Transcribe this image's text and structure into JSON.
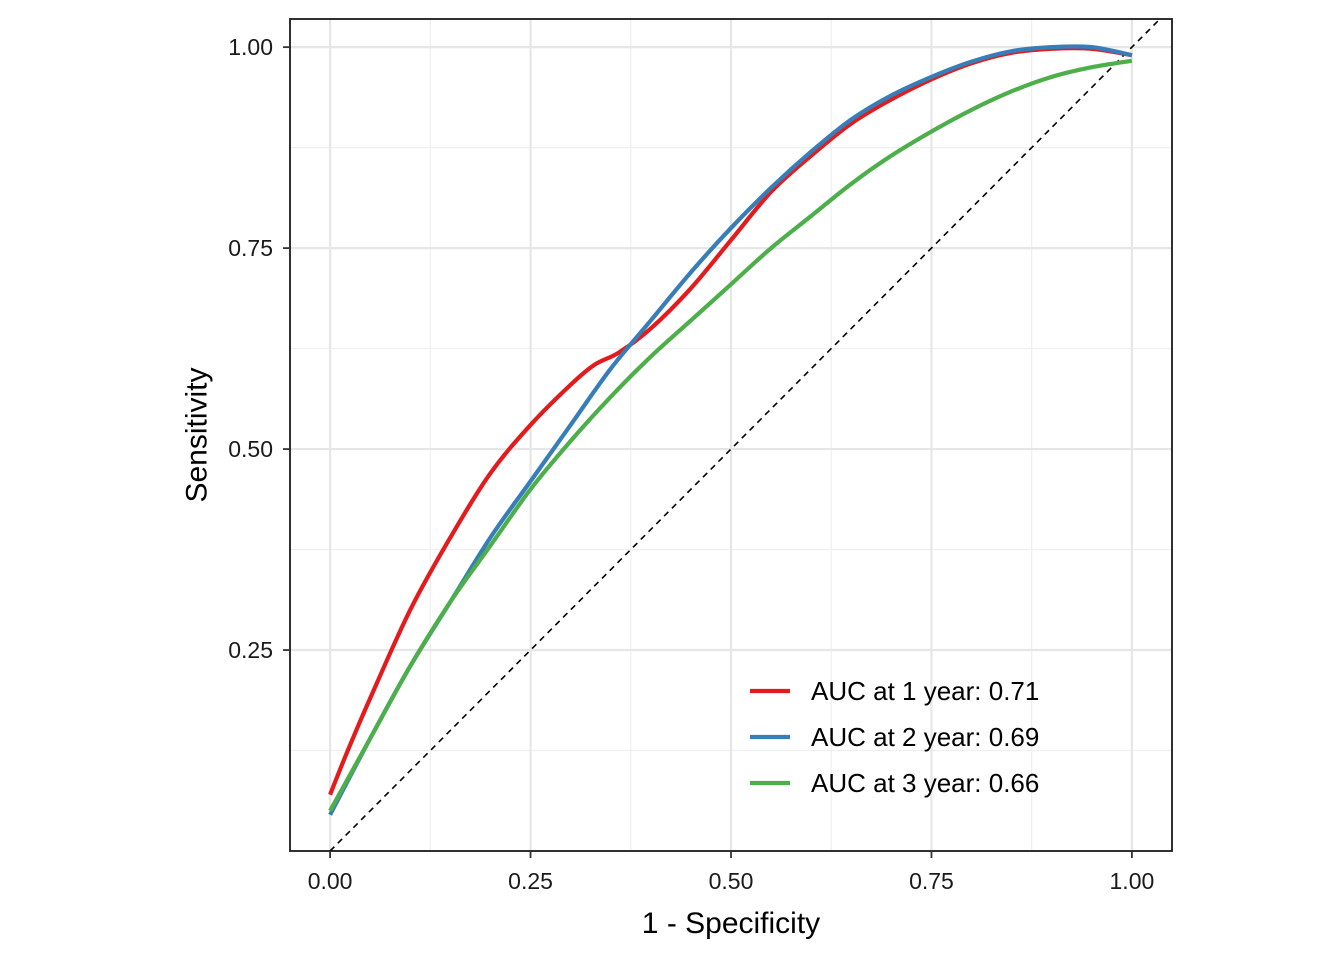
{
  "chart_data": {
    "type": "line",
    "title": "",
    "xlabel": "1 - Specificity",
    "ylabel": "Sensitivity",
    "xlim": [
      -0.05,
      1.05
    ],
    "ylim": [
      -0.0,
      1.035
    ],
    "x_ticks": [
      0,
      0.25,
      0.5,
      0.75,
      1
    ],
    "x_tick_labels": [
      "0.00",
      "0.25",
      "0.50",
      "0.75",
      "1.00"
    ],
    "y_ticks": [
      0.25,
      0.5,
      0.75,
      1
    ],
    "y_tick_labels": [
      "0.25",
      "0.50",
      "0.75",
      "1.00"
    ],
    "grid": true,
    "legend_position": "bottom-right",
    "reference_line": "diagonal dashed",
    "series": [
      {
        "name": "AUC at 1 year: 0.71",
        "color": "#E41A1C",
        "x": [
          0,
          0.02,
          0.05,
          0.1,
          0.15,
          0.2,
          0.25,
          0.3,
          0.33,
          0.36,
          0.4,
          0.45,
          0.5,
          0.55,
          0.6,
          0.65,
          0.7,
          0.75,
          0.8,
          0.85,
          0.9,
          0.95,
          1.0
        ],
        "y": [
          0.07,
          0.12,
          0.19,
          0.3,
          0.39,
          0.47,
          0.53,
          0.58,
          0.605,
          0.62,
          0.65,
          0.7,
          0.76,
          0.82,
          0.865,
          0.905,
          0.935,
          0.96,
          0.98,
          0.993,
          0.998,
          0.998,
          0.99
        ]
      },
      {
        "name": "AUC at 2 year: 0.69",
        "color": "#377EB8",
        "x": [
          0,
          0.05,
          0.1,
          0.15,
          0.2,
          0.25,
          0.3,
          0.35,
          0.4,
          0.45,
          0.5,
          0.55,
          0.6,
          0.65,
          0.7,
          0.75,
          0.8,
          0.85,
          0.9,
          0.95,
          1.0
        ],
        "y": [
          0.045,
          0.14,
          0.23,
          0.31,
          0.39,
          0.46,
          0.53,
          0.6,
          0.66,
          0.72,
          0.775,
          0.825,
          0.87,
          0.91,
          0.94,
          0.963,
          0.982,
          0.995,
          1.0,
          1.0,
          0.99
        ]
      },
      {
        "name": "AUC at 3 year: 0.66",
        "color": "#4DAF4A",
        "x": [
          0,
          0.05,
          0.1,
          0.15,
          0.2,
          0.25,
          0.3,
          0.35,
          0.4,
          0.45,
          0.5,
          0.55,
          0.6,
          0.65,
          0.7,
          0.75,
          0.8,
          0.85,
          0.9,
          0.95,
          1.0
        ],
        "y": [
          0.05,
          0.14,
          0.23,
          0.31,
          0.38,
          0.45,
          0.51,
          0.565,
          0.615,
          0.66,
          0.705,
          0.75,
          0.79,
          0.83,
          0.865,
          0.895,
          0.922,
          0.945,
          0.963,
          0.975,
          0.983
        ]
      }
    ]
  }
}
